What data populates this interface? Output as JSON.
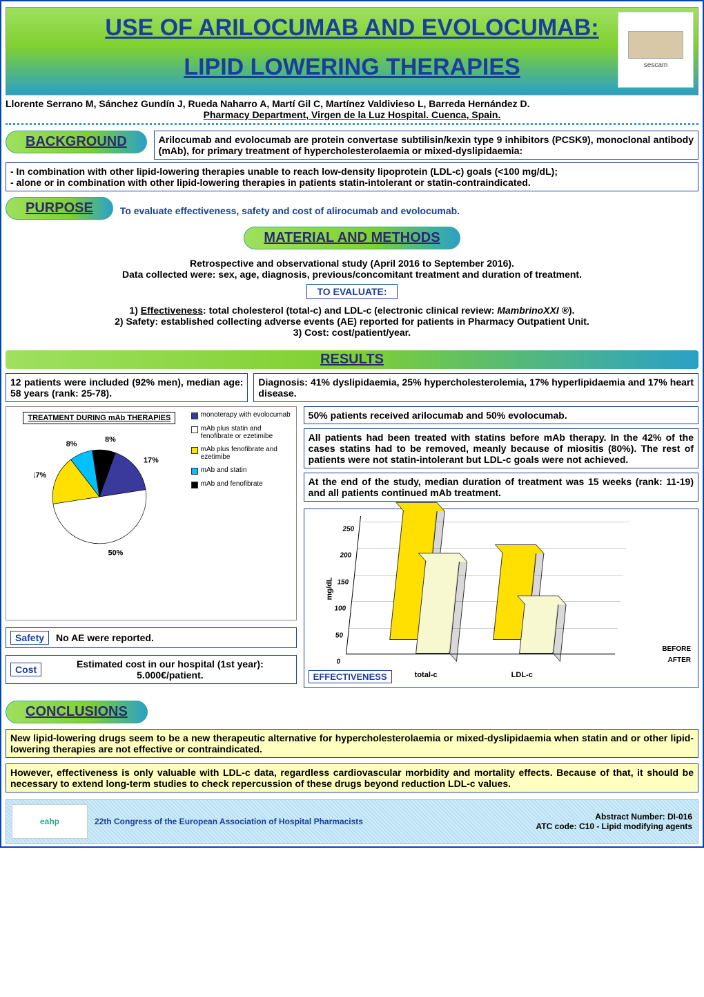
{
  "header": {
    "title_line1": "USE OF ARILOCUMAB AND EVOLOCUMAB:",
    "title_line2": "LIPID LOWERING THERAPIES",
    "logo_text": "sescam",
    "authors": "Llorente Serrano M, Sánchez Gundín J, Rueda Naharro A, Martí Gil C, Martínez Valdivieso L, Barreda Hernández D.",
    "affiliation": "Pharmacy Department, Virgen de la Luz Hospital. Cuenca, Spain."
  },
  "background": {
    "label": "BACKGROUND",
    "text": "Arilocumab and evolocumab are protein convertase subtilisin/kexin type 9 inhibitors (PCSK9), monoclonal antibody (mAb), for primary treatment of hypercholesterolaemia or mixed-dyslipidaemia:",
    "bullets": "- In combination with other lipid-lowering therapies unable to reach low-density lipoprotein (LDL-c) goals (<100 mg/dL);\n- alone or in combination with other lipid-lowering therapies in patients statin-intolerant or statin-contraindicated."
  },
  "purpose": {
    "label": "PURPOSE",
    "text": "To evaluate effectiveness, safety and cost of alirocumab and evolocumab."
  },
  "methods": {
    "label": "MATERIAL AND METHODS",
    "line1": "Retrospective and observational study (April 2016 to September 2016).",
    "line2": "Data collected were: sex, age, diagnosis, previous/concomitant treatment and duration of treatment.",
    "to_evaluate_label": "TO EVALUATE:",
    "e1": "1) Effectiveness: total cholesterol (total-c) and LDL-c (electronic clinical review: MambrinoXXI ®).",
    "e2": "2) Safety: established collecting adverse events (AE) reported for patients in Pharmacy Outpatient Unit.",
    "e3": "3) Cost: cost/patient/year."
  },
  "results": {
    "label": "RESULTS",
    "patients": "12 patients were included (92% men), median age: 58 years (rank: 25-78).",
    "diagnosis": "Diagnosis: 41% dyslipidaemia, 25% hypercholesterolemia, 17% hyperlipidaemia and 17% heart disease.",
    "split": "50% patients received arilocumab and 50% evolocumab.",
    "statins": "All patients had been treated with statins before mAb therapy. In the 42% of the cases statins had to be removed, meanly because of miositis (80%). The rest of patients were not statin-intolerant but LDL-c goals were not achieved.",
    "duration": "At the end of the study, median duration of treatment was 15 weeks (rank: 11-19) and all patients continued mAb treatment.",
    "pie": {
      "title": "TREATMENT DURING mAb THERAPIES",
      "slices": [
        {
          "label": "monoterapy with evolocumab",
          "value": 17,
          "color": "#3a3a9c",
          "tag": "17%"
        },
        {
          "label": "mAb plus statin and fenofibrate or ezetimibe",
          "value": 50,
          "color": "#ffffff",
          "tag": "50%"
        },
        {
          "label": "mAb plus fenofibrate and ezetimibe",
          "value": 17,
          "color": "#ffe000",
          "tag": "17%"
        },
        {
          "label": "mAb and statin",
          "value": 8,
          "color": "#00c0ff",
          "tag": "8%"
        },
        {
          "label": "mAb and fenofibrate",
          "value": 8,
          "color": "#000000",
          "tag": "8%"
        }
      ]
    },
    "safety": {
      "tag": "Safety",
      "text": "No AE were reported."
    },
    "cost": {
      "tag": "Cost",
      "text": "Estimated cost in our hospital (1st year): 5.000€/patient."
    },
    "bar": {
      "tag": "EFFECTIVENESS",
      "ylabel": "mg/dL",
      "yticks": [
        "0",
        "50",
        "100",
        "150",
        "200",
        "250"
      ],
      "ylim": 260,
      "categories": [
        "total-c",
        "LDL-c"
      ],
      "depth_labels": [
        "BEFORE",
        "AFTER"
      ],
      "series": {
        "before": {
          "color": "#ffe000",
          "values": [
            245,
            165
          ]
        },
        "after": {
          "color": "#f7f7d0",
          "values": [
            175,
            95
          ]
        }
      }
    }
  },
  "conclusions": {
    "label": "CONCLUSIONS",
    "p1": "New lipid-lowering drugs seem to be a new therapeutic alternative for hypercholesterolaemia or mixed-dyslipidaemia when statin and or other lipid-lowering therapies are not effective or contraindicated.",
    "p2": "However, effectiveness is only valuable with LDL-c data, regardless cardiovascular morbidity and mortality effects. Because of that, it should be necessary to extend long-term studies to check repercussion of these drugs beyond reduction LDL-c values."
  },
  "footer": {
    "eahp": "eahp",
    "congress": "22th Congress of the European Association of Hospital Pharmacists",
    "abstract": "Abstract Number: DI-016",
    "atc": "ATC code: C10 - Lipid modifying agents"
  },
  "style": {
    "gradient_from": "#9fe060",
    "gradient_to": "#2aa0c8",
    "accent_blue": "#1a3e9c",
    "yellow_box": "#ffffc0"
  }
}
